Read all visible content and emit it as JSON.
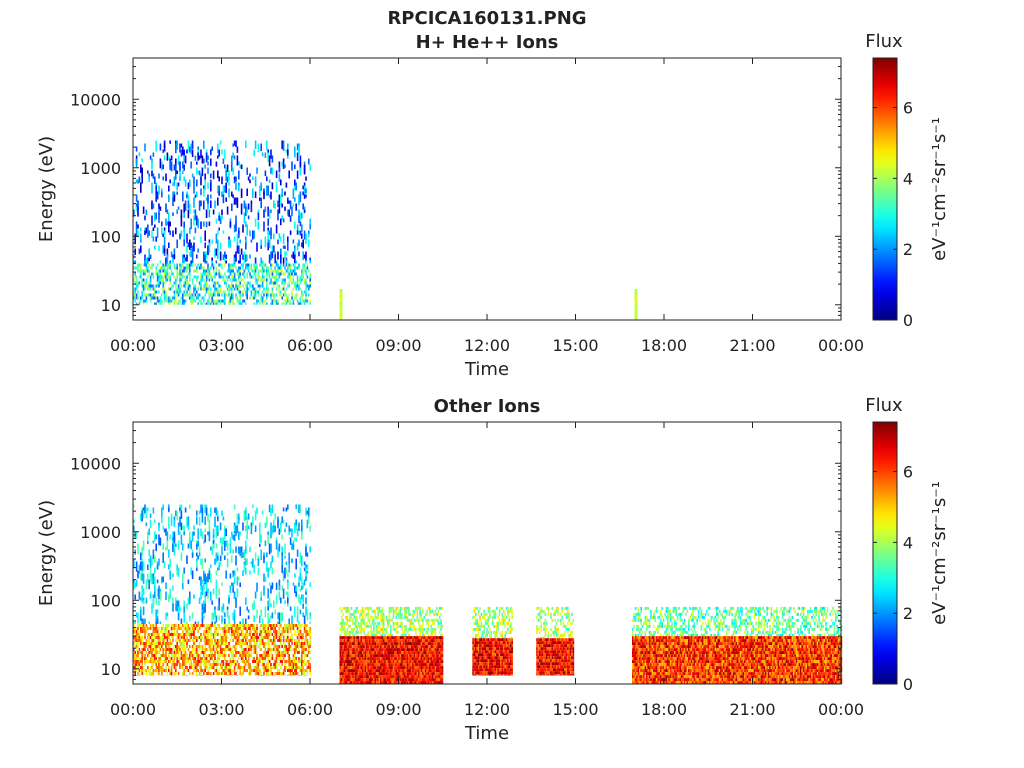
{
  "chart_data": [
    {
      "type": "heatmap",
      "title": "RPCICA160131.PNG",
      "subtitle": "H+ He++ Ions",
      "xlabel": "Time",
      "ylabel": "Energy (eV)",
      "yscale": "log",
      "ylim": [
        6,
        40000
      ],
      "x_tick_labels": [
        "00:00",
        "03:00",
        "06:00",
        "09:00",
        "12:00",
        "15:00",
        "18:00",
        "21:00",
        "00:00"
      ],
      "y_ticks": [
        10,
        100,
        1000,
        10000
      ],
      "y_tick_labels": [
        "10",
        "100",
        "1000",
        "10000"
      ],
      "colorbar": {
        "title": "Flux",
        "label": "eV⁻¹cm⁻²sr⁻¹s⁻¹",
        "ticks": [
          0,
          2,
          4,
          6
        ],
        "range": [
          0,
          7.4
        ],
        "colormap": "jet"
      },
      "data_blocks": [
        {
          "start": "00:00",
          "end": "06:00",
          "emin": 10,
          "emax": 40,
          "flux_min": 1.5,
          "flux_max": 4.5,
          "density": 0.55
        },
        {
          "start": "00:00",
          "end": "06:00",
          "emin": 40,
          "emax": 2500,
          "flux_min": 0.3,
          "flux_max": 3.0,
          "density": 0.12
        },
        {
          "start": "07:00",
          "end": "07:05",
          "emin": 6,
          "emax": 17,
          "flux_min": 4.0,
          "flux_max": 4.5,
          "density": 1.0
        },
        {
          "start": "17:00",
          "end": "17:05",
          "emin": 6,
          "emax": 17,
          "flux_min": 4.0,
          "flux_max": 4.5,
          "density": 1.0
        }
      ]
    },
    {
      "type": "heatmap",
      "title": "Other Ions",
      "xlabel": "Time",
      "ylabel": "Energy (eV)",
      "yscale": "log",
      "ylim": [
        6,
        40000
      ],
      "x_tick_labels": [
        "00:00",
        "03:00",
        "06:00",
        "09:00",
        "12:00",
        "15:00",
        "18:00",
        "21:00",
        "00:00"
      ],
      "y_ticks": [
        10,
        100,
        1000,
        10000
      ],
      "y_tick_labels": [
        "10",
        "100",
        "1000",
        "10000"
      ],
      "colorbar": {
        "title": "Flux",
        "label": "eV⁻¹cm⁻²sr⁻¹s⁻¹",
        "ticks": [
          0,
          2,
          4,
          6
        ],
        "range": [
          0,
          7.4
        ],
        "colormap": "jet"
      },
      "data_blocks": [
        {
          "start": "00:00",
          "end": "06:00",
          "emin": 8,
          "emax": 45,
          "flux_min": 4.0,
          "flux_max": 6.5,
          "density": 0.7
        },
        {
          "start": "00:00",
          "end": "06:00",
          "emin": 45,
          "emax": 2500,
          "flux_min": 1.5,
          "flux_max": 3.5,
          "density": 0.13
        },
        {
          "start": "07:00",
          "end": "10:30",
          "emin": 6,
          "emax": 30,
          "flux_min": 5.5,
          "flux_max": 7.4,
          "density": 1.0
        },
        {
          "start": "07:00",
          "end": "10:30",
          "emin": 30,
          "emax": 80,
          "flux_min": 3.0,
          "flux_max": 5.0,
          "density": 0.55
        },
        {
          "start": "11:30",
          "end": "12:50",
          "emin": 8,
          "emax": 28,
          "flux_min": 5.5,
          "flux_max": 7.4,
          "density": 1.0
        },
        {
          "start": "11:30",
          "end": "12:50",
          "emin": 28,
          "emax": 80,
          "flux_min": 3.0,
          "flux_max": 5.0,
          "density": 0.5
        },
        {
          "start": "13:40",
          "end": "14:55",
          "emin": 8,
          "emax": 28,
          "flux_min": 5.5,
          "flux_max": 7.4,
          "density": 1.0
        },
        {
          "start": "13:40",
          "end": "14:55",
          "emin": 28,
          "emax": 80,
          "flux_min": 3.0,
          "flux_max": 5.0,
          "density": 0.4
        },
        {
          "start": "16:55",
          "end": "24:00",
          "emin": 6,
          "emax": 30,
          "flux_min": 5.0,
          "flux_max": 7.2,
          "density": 1.0
        },
        {
          "start": "16:55",
          "end": "24:00",
          "emin": 30,
          "emax": 80,
          "flux_min": 2.5,
          "flux_max": 4.5,
          "density": 0.45
        }
      ]
    }
  ]
}
